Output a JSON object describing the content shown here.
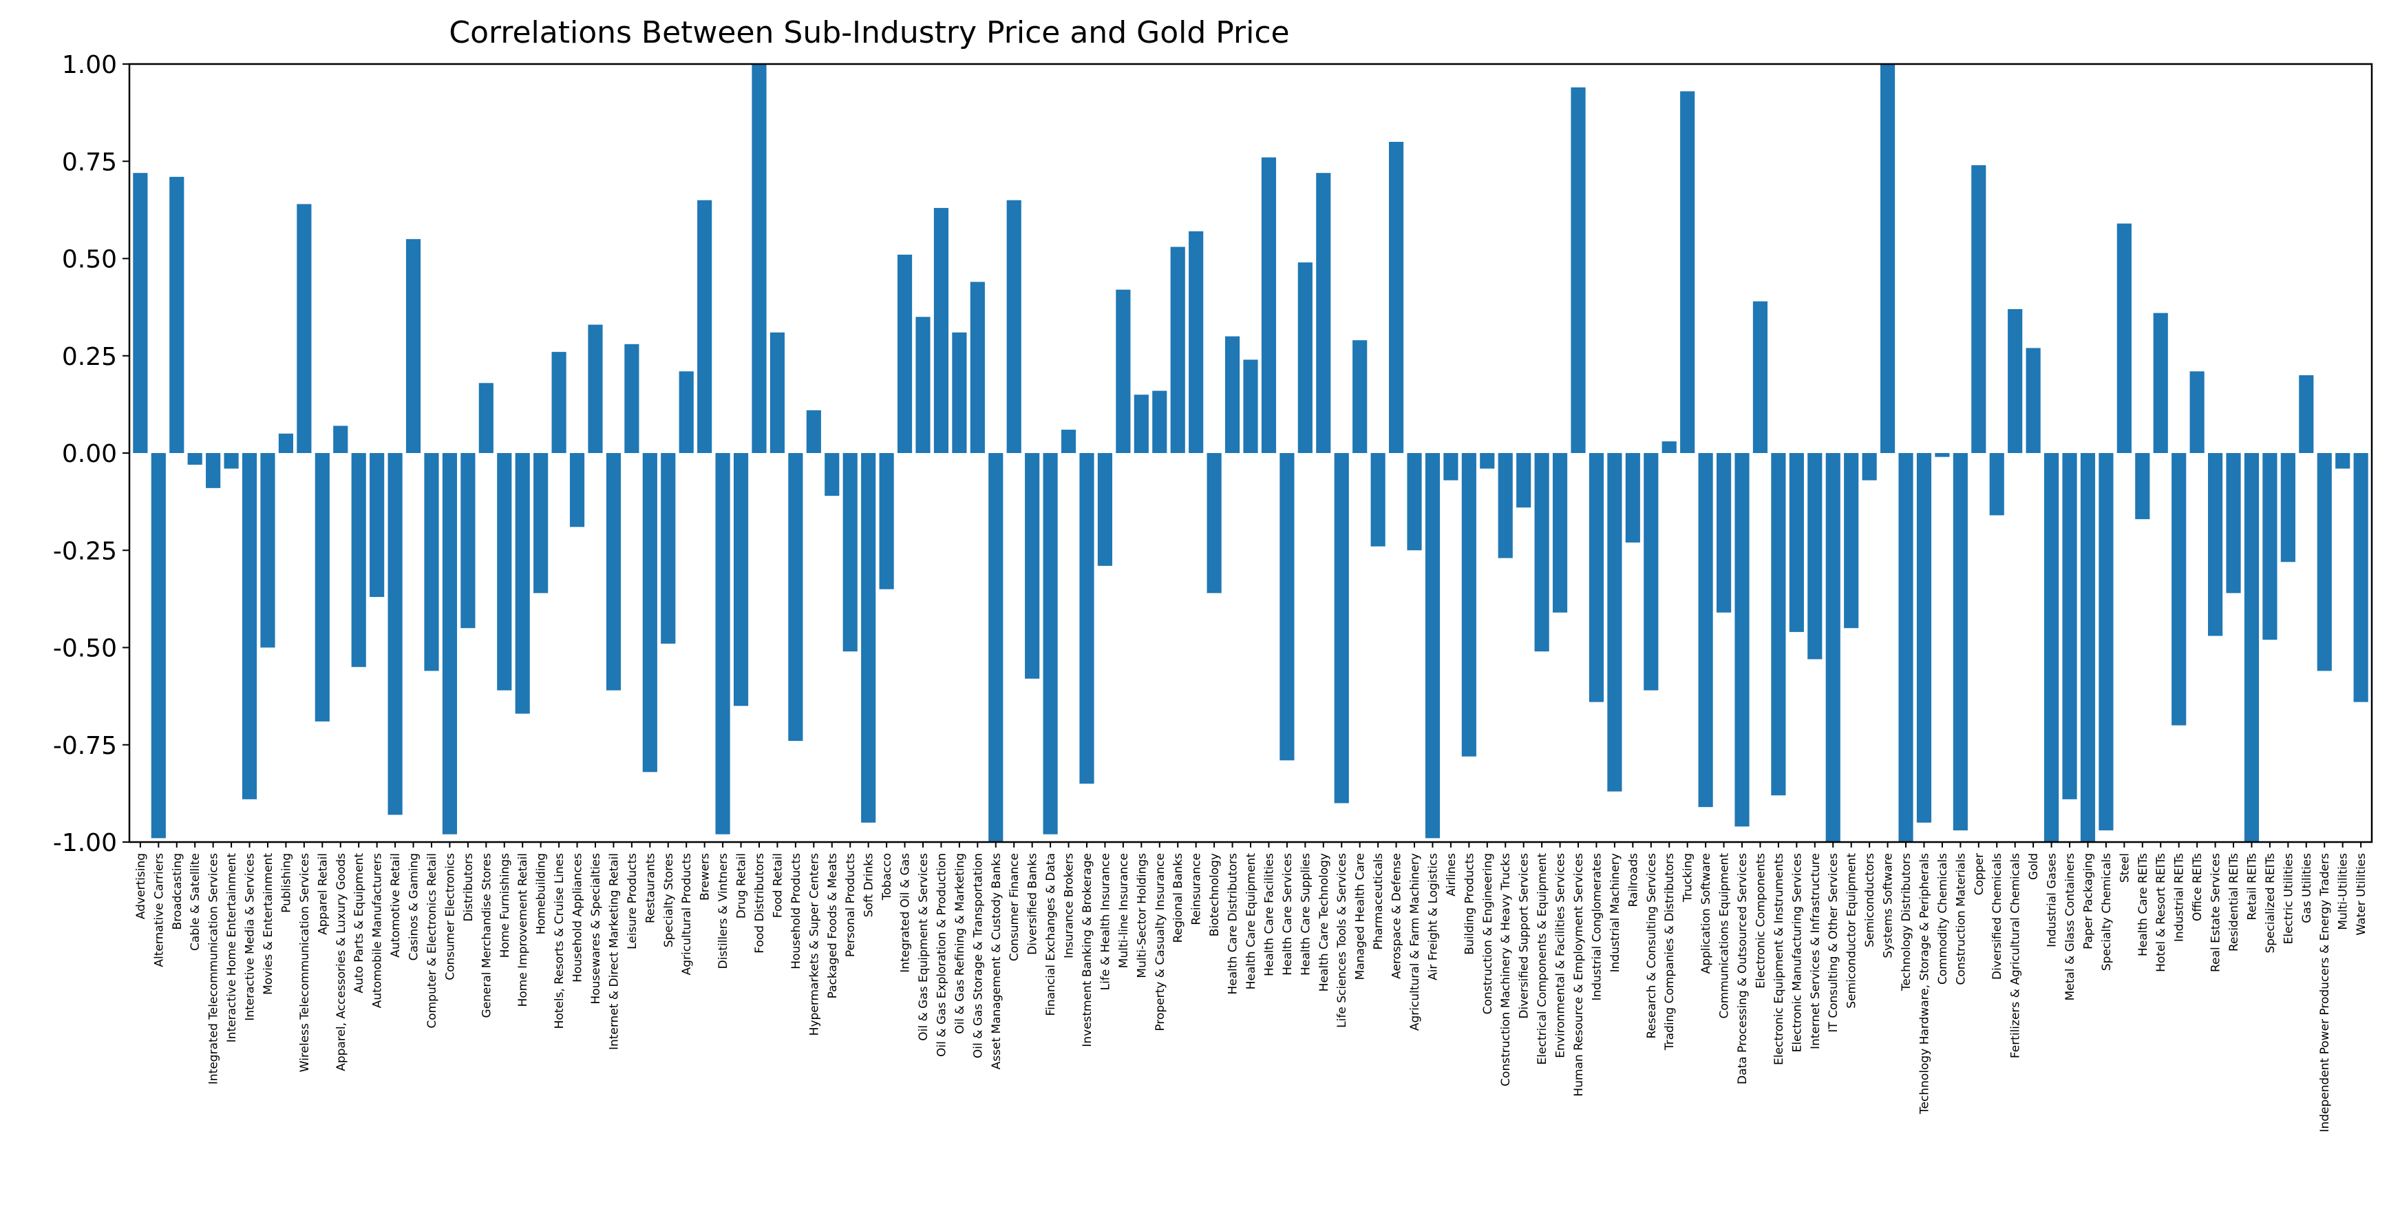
{
  "chart_data": {
    "type": "bar",
    "title": "Correlations Between Sub-Industry Price and Gold Price",
    "xlabel": "",
    "ylabel": "",
    "ylim": [
      -1.0,
      1.0
    ],
    "yticks": [
      "-1.00",
      "-0.75",
      "-0.50",
      "-0.25",
      "0.00",
      "0.25",
      "0.50",
      "0.75",
      "1.00"
    ],
    "grid": false,
    "bar_color": "#1f77b4",
    "categories": [
      "Advertising",
      "Alternative Carriers",
      "Broadcasting",
      "Cable & Satellite",
      "Integrated Telecommunication Services",
      "Interactive Home Entertainment",
      "Interactive Media & Services",
      "Movies & Entertainment",
      "Publishing",
      "Wireless Telecommunication Services",
      "Apparel Retail",
      "Apparel, Accessories & Luxury Goods",
      "Auto Parts & Equipment",
      "Automobile Manufacturers",
      "Automotive Retail",
      "Casinos & Gaming",
      "Computer & Electronics Retail",
      "Consumer Electronics",
      "Distributors",
      "General Merchandise Stores",
      "Home Furnishings",
      "Home Improvement Retail",
      "Homebuilding",
      "Hotels, Resorts & Cruise Lines",
      "Household Appliances",
      "Housewares & Specialties",
      "Internet & Direct Marketing Retail",
      "Leisure Products",
      "Restaurants",
      "Specialty Stores",
      "Agricultural Products",
      "Brewers",
      "Distillers & Vintners",
      "Drug Retail",
      "Food Distributors",
      "Food Retail",
      "Household Products",
      "Hypermarkets & Super Centers",
      "Packaged Foods & Meats",
      "Personal Products",
      "Soft Drinks",
      "Tobacco",
      "Integrated Oil & Gas",
      "Oil & Gas Equipment & Services",
      "Oil & Gas Exploration & Production",
      "Oil & Gas Refining & Marketing",
      "Oil & Gas Storage & Transportation",
      "Asset Management & Custody Banks",
      "Consumer Finance",
      "Diversified Banks",
      "Financial Exchanges & Data",
      "Insurance Brokers",
      "Investment Banking & Brokerage",
      "Life & Health Insurance",
      "Multi-line Insurance",
      "Multi-Sector Holdings",
      "Property & Casualty Insurance",
      "Regional Banks",
      "Reinsurance",
      "Biotechnology",
      "Health Care Distributors",
      "Health Care Equipment",
      "Health Care Facilities",
      "Health Care Services",
      "Health Care Supplies",
      "Health Care Technology",
      "Life Sciences Tools & Services",
      "Managed Health Care",
      "Pharmaceuticals",
      "Aerospace & Defense",
      "Agricultural & Farm Machinery",
      "Air Freight & Logistics",
      "Airlines",
      "Building Products",
      "Construction & Engineering",
      "Construction Machinery & Heavy Trucks",
      "Diversified Support Services",
      "Electrical Components & Equipment",
      "Environmental & Facilities Services",
      "Human Resource & Employment Services",
      "Industrial Conglomerates",
      "Industrial Machinery",
      "Railroads",
      "Research & Consulting Services",
      "Trading Companies & Distributors",
      "Trucking",
      "Application Software",
      "Communications Equipment",
      "Data Processing & Outsourced Services",
      "Electronic Components",
      "Electronic Equipment & Instruments",
      "Electronic Manufacturing Services",
      "Internet Services & Infrastructure",
      "IT Consulting & Other Services",
      "Semiconductor Equipment",
      "Semiconductors",
      "Systems Software",
      "Technology Distributors",
      "Technology Hardware, Storage & Peripherals",
      "Commodity Chemicals",
      "Construction Materials",
      "Copper",
      "Diversified Chemicals",
      "Fertilizers & Agricultural Chemicals",
      "Gold",
      "Industrial Gases",
      "Metal & Glass Containers",
      "Paper Packaging",
      "Specialty Chemicals",
      "Steel",
      "Health Care REITs",
      "Hotel & Resort REITs",
      "Industrial REITs",
      "Office REITs",
      "Real Estate Services",
      "Residential REITs",
      "Retail REITs",
      "Specialized REITs",
      "Electric Utilities",
      "Gas Utilities",
      "Independent Power Producers & Energy Traders",
      "Multi-Utilities",
      "Water Utilities"
    ],
    "values": [
      0.72,
      -0.99,
      0.71,
      -0.03,
      -0.09,
      -0.04,
      -0.89,
      -0.5,
      0.05,
      0.64,
      -0.69,
      0.07,
      -0.55,
      -0.37,
      -0.93,
      0.55,
      -0.56,
      -0.98,
      -0.45,
      0.18,
      -0.61,
      -0.67,
      -0.36,
      0.26,
      -0.19,
      0.33,
      -0.61,
      0.28,
      -0.82,
      -0.49,
      0.21,
      0.65,
      -0.98,
      -0.65,
      1.0,
      0.31,
      -0.74,
      0.11,
      -0.11,
      -0.51,
      -0.95,
      -0.35,
      0.51,
      0.35,
      0.63,
      0.31,
      0.44,
      -1.0,
      0.65,
      -0.58,
      -0.98,
      0.06,
      -0.85,
      -0.29,
      0.42,
      0.15,
      0.16,
      0.53,
      0.57,
      -0.36,
      0.3,
      0.24,
      0.76,
      -0.79,
      0.49,
      0.72,
      -0.9,
      0.29,
      -0.24,
      0.8,
      -0.25,
      -0.99,
      -0.07,
      -0.78,
      -0.04,
      -0.27,
      -0.14,
      -0.51,
      -0.41,
      0.94,
      -0.64,
      -0.87,
      -0.23,
      -0.61,
      0.03,
      0.93,
      -0.91,
      -0.41,
      -0.96,
      0.39,
      -0.88,
      -0.46,
      -0.53,
      -1.0,
      -0.45,
      -0.07,
      1.0,
      -1.0,
      -0.95,
      -0.01,
      -0.97,
      0.74,
      -0.16,
      0.37,
      0.27,
      -1.0,
      -0.89,
      -1.0,
      -0.97,
      0.59,
      -0.17,
      0.36,
      -0.7,
      0.21,
      -0.47,
      -0.36,
      -1.0,
      -0.48,
      -0.28,
      0.2,
      -0.56,
      -0.04,
      -0.64
    ]
  }
}
